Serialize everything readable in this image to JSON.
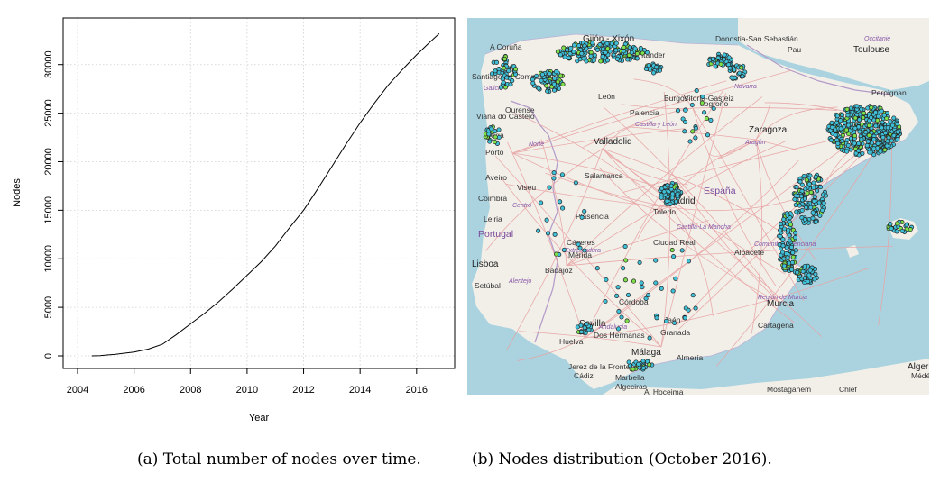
{
  "chart_data": [
    {
      "type": "line",
      "title": "",
      "xlabel": "Year",
      "ylabel": "Nodes",
      "xlim": [
        2004,
        2016.9
      ],
      "ylim": [
        0,
        33500
      ],
      "xticks": [
        "2004",
        "2006",
        "2008",
        "2010",
        "2012",
        "2014",
        "2016"
      ],
      "yticks": [
        "0",
        "5000",
        "10000",
        "15000",
        "20000",
        "25000",
        "30000"
      ],
      "grid": true,
      "series": [
        {
          "name": "",
          "x": [
            2004.5,
            2004.8,
            2005.0,
            2005.3,
            2005.6,
            2006.0,
            2006.5,
            2007.0,
            2007.5,
            2008.0,
            2008.5,
            2009.0,
            2009.5,
            2010.0,
            2010.5,
            2011.0,
            2011.5,
            2012.0,
            2012.5,
            2013.0,
            2013.5,
            2014.0,
            2014.5,
            2015.0,
            2015.5,
            2016.0,
            2016.5,
            2016.8
          ],
          "y": [
            0,
            30,
            80,
            150,
            250,
            400,
            700,
            1200,
            2200,
            3300,
            4400,
            5600,
            6900,
            8300,
            9700,
            11300,
            13200,
            15000,
            17200,
            19500,
            21800,
            24000,
            26000,
            27900,
            29500,
            31000,
            32400,
            33200
          ]
        }
      ]
    }
  ],
  "map": {
    "places": [
      {
        "name": "A Coruña"
      },
      {
        "name": "Gijón - Xixón"
      },
      {
        "name": "Santander"
      },
      {
        "name": "Donostia-San Sebastián"
      },
      {
        "name": "Pau"
      },
      {
        "name": "Toulouse"
      },
      {
        "name": "Occitanie"
      },
      {
        "name": "Santiago de Compostela"
      },
      {
        "name": "Galicia"
      },
      {
        "name": "León"
      },
      {
        "name": "Burgos"
      },
      {
        "name": "Vitoria-Gasteiz"
      },
      {
        "name": "Logroño"
      },
      {
        "name": "Navarra"
      },
      {
        "name": "Ourense"
      },
      {
        "name": "Viana do Castelo"
      },
      {
        "name": "Braga"
      },
      {
        "name": "Palencia"
      },
      {
        "name": "Castilla y León"
      },
      {
        "name": "Valladolid"
      },
      {
        "name": "Zaragoza"
      },
      {
        "name": "Aragón"
      },
      {
        "name": "Perpignan"
      },
      {
        "name": "Porto"
      },
      {
        "name": "Norte"
      },
      {
        "name": "Aveiro"
      },
      {
        "name": "Salamanca"
      },
      {
        "name": "Viseu"
      },
      {
        "name": "Coimbra"
      },
      {
        "name": "Centro"
      },
      {
        "name": "Madrid"
      },
      {
        "name": "España"
      },
      {
        "name": "Leiria"
      },
      {
        "name": "Plasencia"
      },
      {
        "name": "Toledo"
      },
      {
        "name": "Castilla-La Mancha"
      },
      {
        "name": "Portugal"
      },
      {
        "name": "Cáceres"
      },
      {
        "name": "Extremadura"
      },
      {
        "name": "Ciudad Real"
      },
      {
        "name": "Mérida"
      },
      {
        "name": "Comunitat Valenciana"
      },
      {
        "name": "Albacete"
      },
      {
        "name": "Lisboa"
      },
      {
        "name": "Badajoz"
      },
      {
        "name": "Setúbal"
      },
      {
        "name": "Alentejo"
      },
      {
        "name": "Región de Murcia"
      },
      {
        "name": "Murcia"
      },
      {
        "name": "Córdoba"
      },
      {
        "name": "Sevilla"
      },
      {
        "name": "Andalucía"
      },
      {
        "name": "Jaén"
      },
      {
        "name": "Dos Hermanas"
      },
      {
        "name": "Granada"
      },
      {
        "name": "Cartagena"
      },
      {
        "name": "Huelva"
      },
      {
        "name": "Málaga"
      },
      {
        "name": "Almería"
      },
      {
        "name": "Jerez de la Frontera"
      },
      {
        "name": "Cádiz"
      },
      {
        "name": "Marbella"
      },
      {
        "name": "Algeciras"
      },
      {
        "name": "Al Hoceima"
      },
      {
        "name": "Mostaganem"
      },
      {
        "name": "Chlef"
      },
      {
        "name": "Alger"
      },
      {
        "name": "Médéa"
      }
    ],
    "colors": {
      "sea": "#aad3df",
      "land": "#f2efe9",
      "node": "#40c0d8",
      "node_alt": "#7ee04a",
      "outline": "#222222"
    }
  },
  "captions": {
    "a": "(a) Total number of nodes over time.",
    "b": "(b) Nodes distribution (October 2016)."
  }
}
